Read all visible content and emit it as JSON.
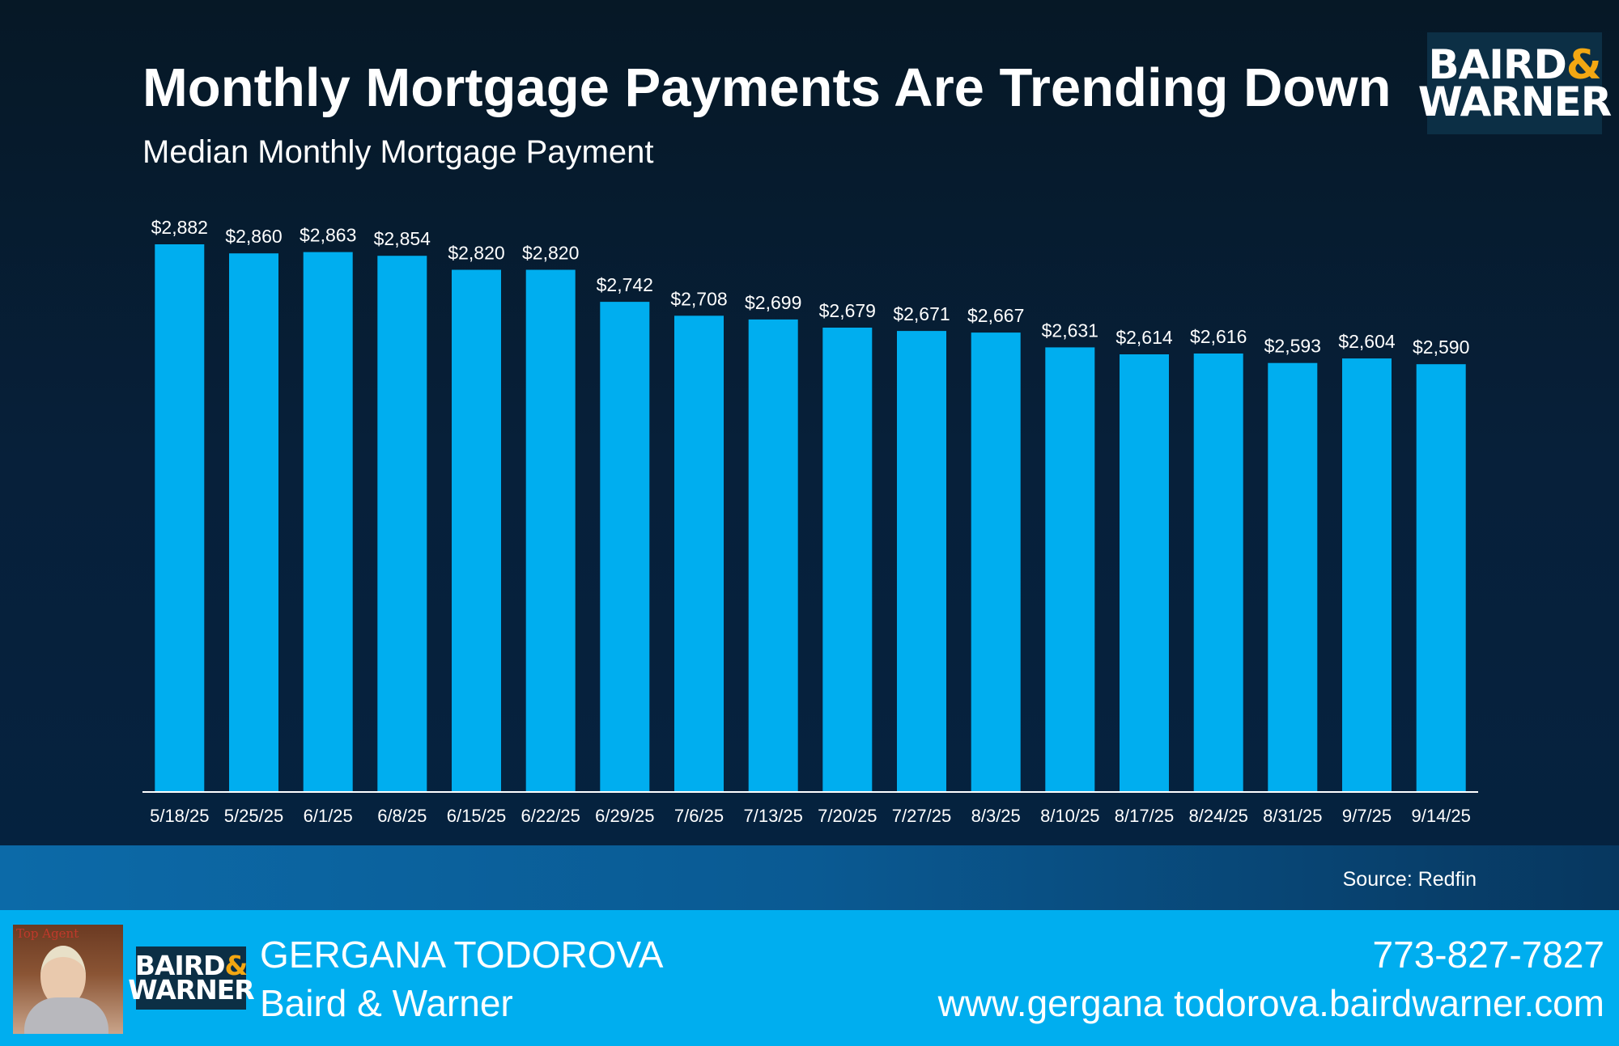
{
  "header": {
    "title": "Monthly Mortgage Payments Are Trending Down",
    "subtitle": "Median Monthly Mortgage Payment",
    "logo_line1": "BAIRD",
    "logo_amp": "&",
    "logo_line2": "WARNER"
  },
  "colors": {
    "bar": "#00aeef",
    "accent_amp": "#f3a712",
    "footer": "#00aeef"
  },
  "chart_data": {
    "type": "bar",
    "title": "Monthly Mortgage Payments Are Trending Down",
    "subtitle": "Median Monthly Mortgage Payment",
    "xlabel": "",
    "ylabel": "",
    "categories": [
      "5/18/25",
      "5/25/25",
      "6/1/25",
      "6/8/25",
      "6/15/25",
      "6/22/25",
      "6/29/25",
      "7/6/25",
      "7/13/25",
      "7/20/25",
      "7/27/25",
      "8/3/25",
      "8/10/25",
      "8/17/25",
      "8/24/25",
      "8/31/25",
      "9/7/25",
      "9/14/25"
    ],
    "values": [
      2882,
      2860,
      2863,
      2854,
      2820,
      2820,
      2742,
      2708,
      2699,
      2679,
      2671,
      2667,
      2631,
      2614,
      2616,
      2593,
      2604,
      2590
    ],
    "data_labels": [
      "$2,882",
      "$2,860",
      "$2,863",
      "$2,854",
      "$2,820",
      "$2,820",
      "$2,742",
      "$2,708",
      "$2,699",
      "$2,679",
      "$2,671",
      "$2,667",
      "$2,631",
      "$2,614",
      "$2,616",
      "$2,593",
      "$2,604",
      "$2,590"
    ],
    "ylim": [
      1550,
      2882
    ],
    "grid": false,
    "legend": "none"
  },
  "source": "Source: Redfin",
  "footer": {
    "photo_tag": "Top Agent",
    "name": "GERGANA TODOROVA",
    "company": "Baird & Warner",
    "phone": "773-827-7827",
    "website": "www.gergana todorova.bairdwarner.com"
  }
}
